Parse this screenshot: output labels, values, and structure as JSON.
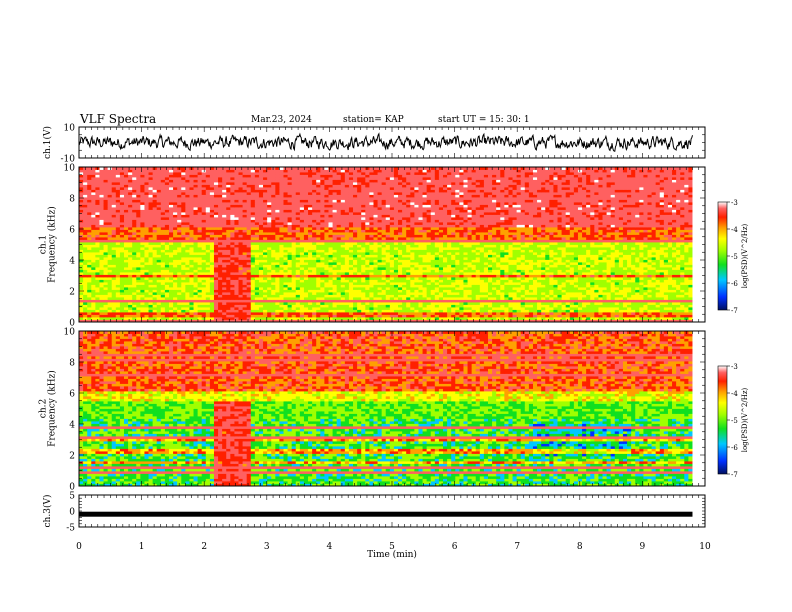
{
  "header": {
    "title": "VLF Spectra",
    "date": "Mar.23, 2024",
    "station": "station= KAP",
    "start": "start  UT =   15: 30: 1"
  },
  "colors": {
    "spectrogram_scale": [
      "#001060",
      "#0030ff",
      "#00c8ff",
      "#10e020",
      "#a0ff00",
      "#ffff00",
      "#ffa000",
      "#ff2000",
      "#ff6060",
      "#ffffff"
    ]
  },
  "chart_data": [
    {
      "type": "line",
      "name": "ch1-waveform",
      "ylabel": "ch.1(V)",
      "ylim": [
        -10,
        10
      ],
      "ytick_labels": [
        "10",
        "-10"
      ],
      "xlim": [
        0,
        10
      ],
      "description_series": "noise waveform",
      "amplitude_typical": 4
    },
    {
      "type": "heatmap",
      "name": "ch1-spectrogram",
      "ylabel": "ch.1\nFrequency (kHz)",
      "ylim": [
        0,
        10
      ],
      "ytick_labels": [
        "0",
        "2",
        "4",
        "6",
        "8",
        "10"
      ],
      "xlim": [
        0,
        10
      ],
      "colorbar": {
        "label": "log(PSD)(V^2/Hz)",
        "range": [
          -7,
          -3
        ],
        "tick_labels": [
          "-3",
          "-4",
          "-5",
          "-6",
          "-7"
        ]
      },
      "bands": [
        {
          "from_khz": 5.5,
          "to_khz": 10,
          "level": "high"
        },
        {
          "from_khz": 0,
          "to_khz": 5.5,
          "level": "medium"
        }
      ],
      "burst_window_min": [
        2.1,
        2.7
      ]
    },
    {
      "type": "heatmap",
      "name": "ch2-spectrogram",
      "ylabel": "ch.2\nFrequency (kHz)",
      "ylim": [
        0,
        10
      ],
      "ytick_labels": [
        "0",
        "2",
        "4",
        "6",
        "8",
        "10"
      ],
      "xlim": [
        0,
        10
      ],
      "colorbar": {
        "label": "log(PSD)(V^2/Hz)",
        "range": [
          -7,
          -3
        ],
        "tick_labels": [
          "-3",
          "-4",
          "-5",
          "-6",
          "-7"
        ]
      },
      "bands": [
        {
          "from_khz": 6,
          "to_khz": 10,
          "level": "high"
        },
        {
          "from_khz": 0,
          "to_khz": 6,
          "level": "low-medium"
        }
      ],
      "burst_window_min": [
        2.1,
        2.7
      ]
    },
    {
      "type": "line",
      "name": "ch3-level",
      "ylabel": "ch.3(V)",
      "ylim": [
        -5,
        5
      ],
      "ytick_labels": [
        "5",
        "0",
        "-5"
      ],
      "xlim": [
        0,
        10
      ],
      "xlabel": "Time (min)",
      "xtick_labels": [
        "0",
        "1",
        "2",
        "3",
        "4",
        "5",
        "6",
        "7",
        "8",
        "9",
        "10"
      ],
      "values_constant": -1,
      "data_end_min": 9.8
    }
  ]
}
